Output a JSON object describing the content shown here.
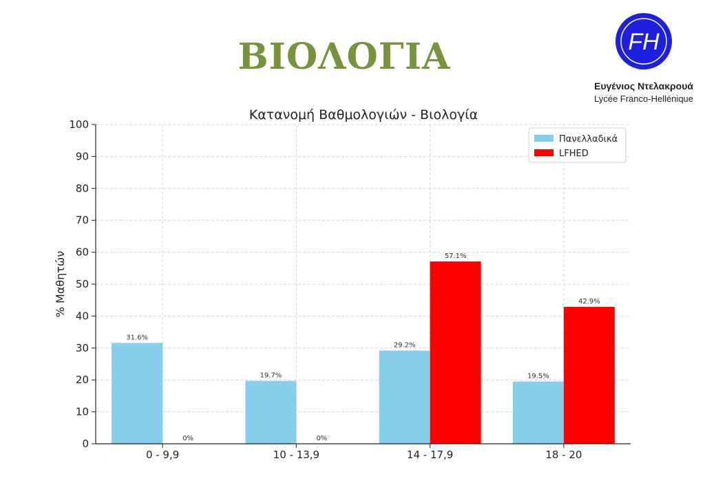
{
  "page": {
    "heading": "ΒΙΟΛΟΓΙΑ",
    "logo": {
      "monogram": "FH",
      "name": "Ευγένιος Ντελακρουά",
      "school": "Lycée Franco-Hellénique"
    }
  },
  "chart_data": {
    "type": "bar",
    "title": "Κατανομή Βαθμολογιών - Βιολογία",
    "xlabel": "",
    "ylabel": "% Μαθητών",
    "ylim": [
      0,
      100
    ],
    "yticks": [
      0,
      10,
      20,
      30,
      40,
      50,
      60,
      70,
      80,
      90,
      100
    ],
    "grid": true,
    "legend_position": "top-right",
    "categories": [
      "0 - 9,9",
      "10 - 13,9",
      "14 - 17,9",
      "18 - 20"
    ],
    "series": [
      {
        "name": "Πανελλαδικά",
        "color": "#87ceeb",
        "values": [
          31.6,
          19.7,
          29.2,
          19.5
        ],
        "labels": [
          "31.6%",
          "19.7%",
          "29.2%",
          "19.5%"
        ]
      },
      {
        "name": "LFHED",
        "color": "#ff0000",
        "values": [
          0,
          0,
          57.1,
          42.9
        ],
        "labels": [
          "0%",
          "0%",
          "57.1%",
          "42.9%"
        ]
      }
    ]
  }
}
